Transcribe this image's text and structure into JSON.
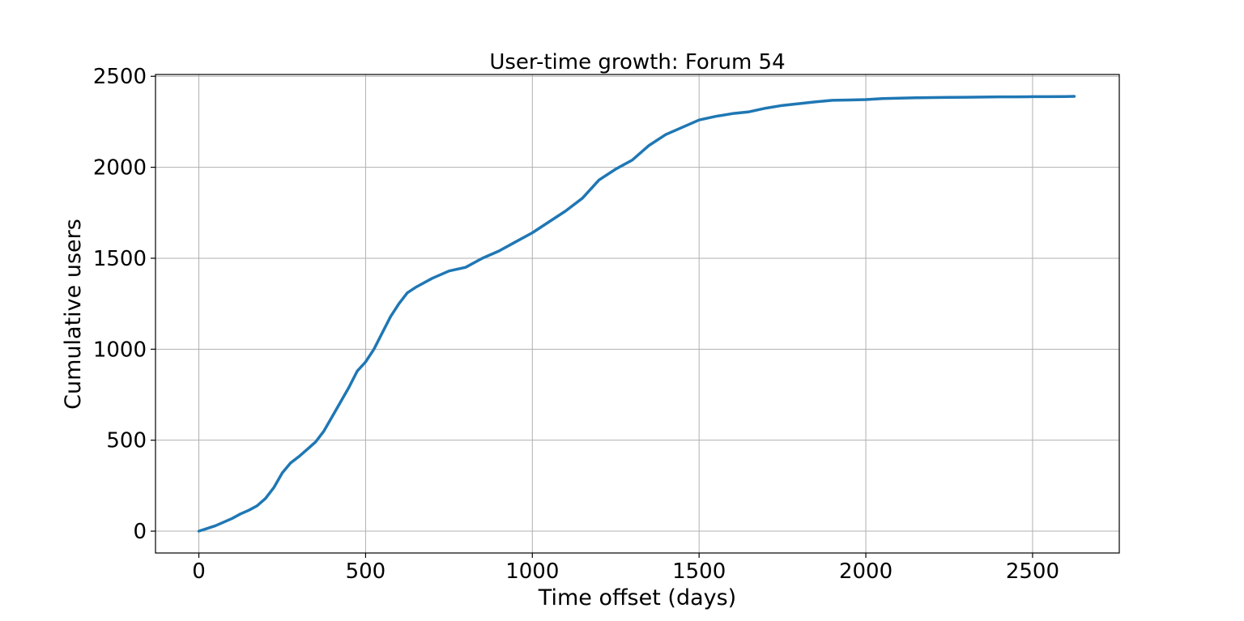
{
  "chart_data": {
    "type": "line",
    "title": "User-time growth: Forum 54",
    "xlabel": "Time offset (days)",
    "ylabel": "Cumulative users",
    "xlim": [
      -130,
      2760
    ],
    "ylim": [
      -120,
      2510
    ],
    "xticks": [
      0,
      500,
      1000,
      1500,
      2000,
      2500
    ],
    "yticks": [
      0,
      500,
      1000,
      1500,
      2000,
      2500
    ],
    "grid": true,
    "series": [
      {
        "color": "#1f77b4",
        "x": [
          0,
          25,
          50,
          75,
          100,
          125,
          150,
          175,
          200,
          225,
          250,
          275,
          300,
          325,
          350,
          375,
          400,
          425,
          450,
          475,
          500,
          525,
          550,
          575,
          600,
          625,
          650,
          700,
          750,
          800,
          850,
          900,
          950,
          1000,
          1050,
          1100,
          1150,
          1200,
          1250,
          1300,
          1350,
          1400,
          1450,
          1500,
          1550,
          1600,
          1650,
          1700,
          1750,
          1800,
          1850,
          1900,
          1950,
          2000,
          2050,
          2100,
          2150,
          2200,
          2250,
          2300,
          2350,
          2400,
          2450,
          2500,
          2550,
          2600,
          2625
        ],
        "y": [
          0,
          15,
          30,
          50,
          70,
          95,
          115,
          140,
          180,
          240,
          320,
          375,
          410,
          450,
          490,
          550,
          630,
          710,
          790,
          880,
          930,
          1000,
          1090,
          1180,
          1250,
          1310,
          1340,
          1390,
          1430,
          1450,
          1500,
          1540,
          1590,
          1640,
          1700,
          1760,
          1830,
          1930,
          1990,
          2040,
          2120,
          2180,
          2220,
          2260,
          2280,
          2295,
          2305,
          2325,
          2340,
          2350,
          2360,
          2368,
          2370,
          2372,
          2378,
          2380,
          2382,
          2383,
          2384,
          2385,
          2386,
          2387,
          2387,
          2388,
          2388,
          2389,
          2390
        ]
      }
    ]
  }
}
